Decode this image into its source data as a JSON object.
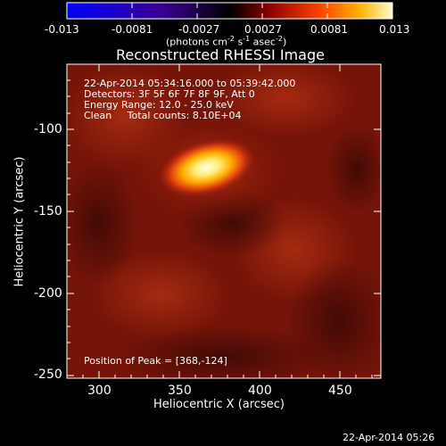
{
  "colorbar": {
    "min_label": "-0.013",
    "max_label": "0.013",
    "tick_labels": [
      "-0.013",
      "-0.0081",
      "-0.0027",
      "0.0027",
      "0.0081",
      "0.013"
    ],
    "units_label_main": "(photons cm",
    "units_label_exp1": "-2",
    "units_label_s": " s",
    "units_label_exp2": "-1",
    "units_label_asec": " asec",
    "units_label_exp3": "-2",
    "units_label_close": ")",
    "gradient_colors": [
      "#0000ff",
      "#4b0082",
      "#000000",
      "#8b0000",
      "#ff4500",
      "#ffa500",
      "#ffff99"
    ]
  },
  "plot": {
    "title": "Reconstructed RHESSI Image",
    "annotation_time": "22-Apr-2014 05:34:16.000 to 05:39:42.000",
    "annotation_detectors": "Detectors: 3F 5F 6F 7F 8F 9F, Att 0",
    "annotation_energy": "Energy Range: 12.0 - 25.0 keV",
    "annotation_clean": "Clean     Total counts: 8.10E+04",
    "annotation_peak": "Position of Peak = [368,-124]",
    "xlabel": "Heliocentric X (arcsec)",
    "ylabel": "Heliocentric Y (arcsec)",
    "x_ticks": [
      "300",
      "350",
      "400",
      "450"
    ],
    "y_ticks": [
      "-100",
      "-150",
      "-200",
      "-250"
    ],
    "x_range": [
      280,
      475
    ],
    "y_range": [
      -252,
      -62
    ],
    "peak_x": 368,
    "peak_y": -124,
    "background_color": "#7a1408",
    "peak_color": "#ffffd0"
  },
  "footer": {
    "timestamp": "22-Apr-2014 05:26"
  }
}
